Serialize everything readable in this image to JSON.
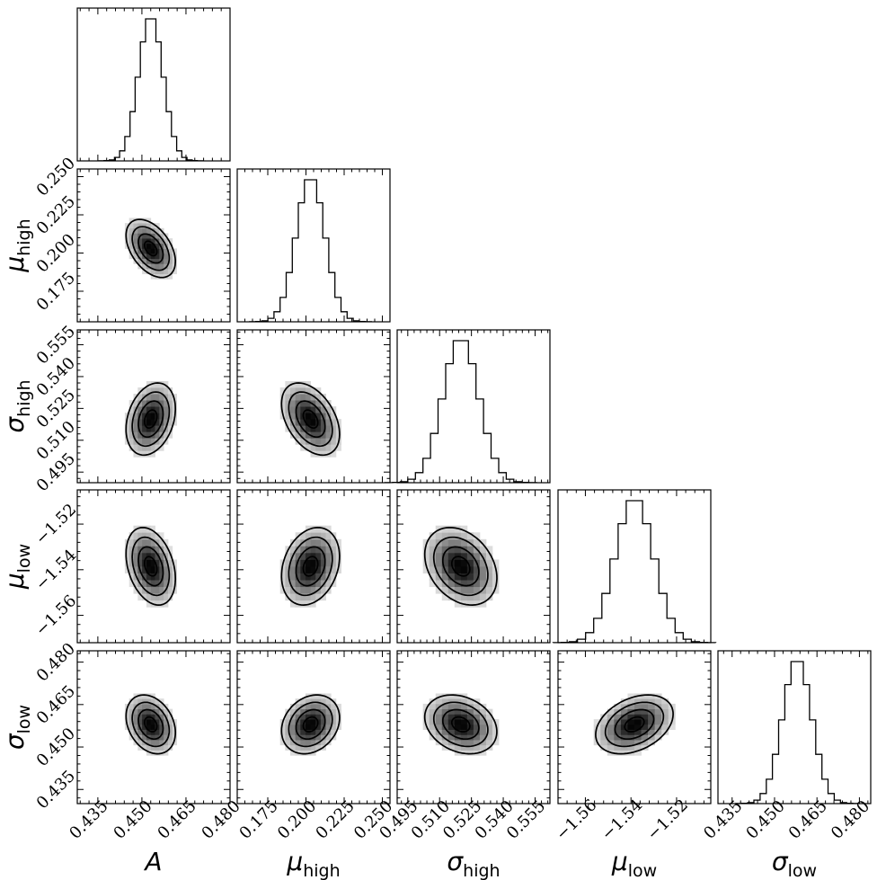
{
  "chart_data": {
    "type": "corner",
    "title": "",
    "parameters": [
      {
        "key": "A",
        "label": "A",
        "subscript": "",
        "mean": 0.453,
        "sd": 0.0042,
        "range": [
          0.428,
          0.48
        ],
        "ticks": [
          0.435,
          0.45,
          0.465,
          0.48
        ],
        "tick_labels": [
          "0.435",
          "0.450",
          "0.465",
          "0.480"
        ]
      },
      {
        "key": "mu_high",
        "label": "μ",
        "subscript": "high",
        "mean": 0.203,
        "sd": 0.0095,
        "range": [
          0.155,
          0.255
        ],
        "ticks": [
          0.175,
          0.2,
          0.225,
          0.25
        ],
        "tick_labels": [
          "0.175",
          "0.200",
          "0.225",
          "0.250"
        ]
      },
      {
        "key": "sigma_high",
        "label": "σ",
        "subscript": "high",
        "mean": 0.52,
        "sd": 0.0085,
        "range": [
          0.49,
          0.562
        ],
        "ticks": [
          0.495,
          0.51,
          0.525,
          0.54,
          0.555
        ],
        "tick_labels": [
          "0.495",
          "0.510",
          "0.525",
          "0.540",
          "0.555"
        ]
      },
      {
        "key": "mu_low",
        "label": "μ",
        "subscript": "low",
        "mean": -1.5385,
        "sd": 0.0085,
        "range": [
          -1.572,
          -1.505
        ],
        "ticks": [
          -1.56,
          -1.54,
          -1.52
        ],
        "tick_labels": [
          "−1.56",
          "−1.54",
          "−1.52"
        ]
      },
      {
        "key": "sigma_low",
        "label": "σ",
        "subscript": "low",
        "mean": 0.458,
        "sd": 0.0052,
        "range": [
          0.43,
          0.484
        ],
        "ticks": [
          0.435,
          0.45,
          0.465,
          0.48
        ],
        "tick_labels": [
          "0.435",
          "0.450",
          "0.465",
          "0.480"
        ]
      }
    ],
    "correlations": [
      {
        "x": "A",
        "y": "mu_high",
        "rho": -0.45
      },
      {
        "x": "A",
        "y": "sigma_high",
        "rho": 0.28
      },
      {
        "x": "mu_high",
        "y": "sigma_high",
        "rho": -0.42
      },
      {
        "x": "A",
        "y": "mu_low",
        "rho": -0.32
      },
      {
        "x": "mu_high",
        "y": "mu_low",
        "rho": 0.25
      },
      {
        "x": "sigma_high",
        "y": "mu_low",
        "rho": -0.3
      },
      {
        "x": "A",
        "y": "sigma_low",
        "rho": -0.28
      },
      {
        "x": "mu_high",
        "y": "sigma_low",
        "rho": 0.22
      },
      {
        "x": "sigma_high",
        "y": "sigma_low",
        "rho": -0.25
      },
      {
        "x": "mu_low",
        "y": "sigma_low",
        "rho": 0.35
      }
    ],
    "contour_levels_sigma": [
      0.5,
      1.0,
      1.5,
      2.0
    ],
    "histogram_bins": 20
  }
}
